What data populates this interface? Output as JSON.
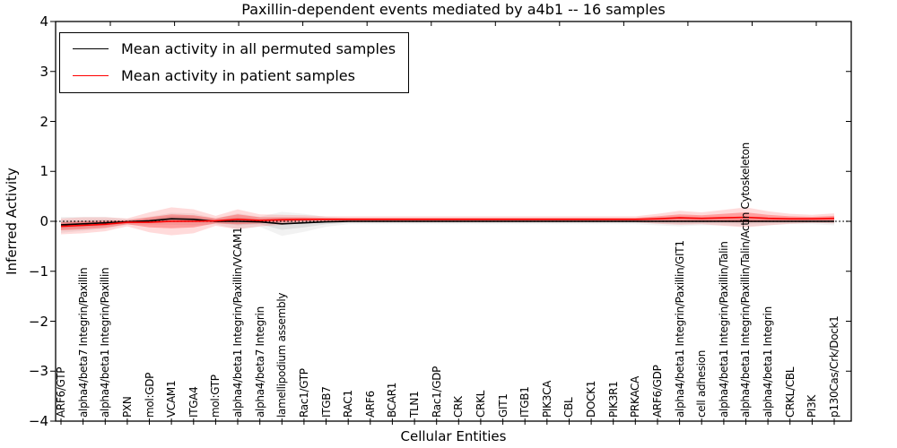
{
  "chart_data": {
    "type": "line",
    "title": "Paxillin-dependent events mediated by a4b1 -- 16 samples",
    "xlabel": "Cellular Entities",
    "ylabel": "Inferred Activity",
    "ylim": [
      -4,
      4
    ],
    "yticks": [
      4,
      3,
      2,
      1,
      0,
      -1,
      -2,
      -3,
      -4
    ],
    "ytick_labels": [
      "4",
      "3",
      "2",
      "1",
      "0",
      "−1",
      "−2",
      "−3",
      "−4"
    ],
    "grid": false,
    "legend_position": "upper left",
    "baseline": {
      "value": 0,
      "style": "dotted",
      "color": "#000000"
    },
    "categories": [
      "ARF6/GTP",
      "alpha4/beta7 Integrin/Paxillin",
      "alpha4/beta1 Integrin/Paxillin",
      "PXN",
      "mol:GDP",
      "VCAM1",
      "ITGA4",
      "mol:GTP",
      "alpha4/beta1 Integrin/Paxillin/VCAM1",
      "alpha4/beta7 Integrin",
      "lamellipodium assembly",
      "Rac1/GTP",
      "ITGB7",
      "RAC1",
      "ARF6",
      "BCAR1",
      "TLN1",
      "Rac1/GDP",
      "CRK",
      "CRKL",
      "GIT1",
      "ITGB1",
      "PIK3CA",
      "CBL",
      "DOCK1",
      "PIK3R1",
      "PRKACA",
      "ARF6/GDP",
      "alpha4/beta1 Integrin/Paxillin/GIT1",
      "cell adhesion",
      "alpha4/beta1 Integrin/Paxillin/Talin",
      "alpha4/beta1 Integrin/Paxillin/Talin/Actin Cytoskeleton",
      "alpha4/beta1 Integrin",
      "CRKL/CBL",
      "PI3K",
      "p130Cas/Crk/Dock1"
    ],
    "series": [
      {
        "name": "Mean activity in all permuted samples",
        "color": "#000000",
        "band_color": "#999999",
        "values": [
          -0.07,
          -0.05,
          -0.03,
          -0.01,
          0.01,
          0.05,
          0.04,
          0.0,
          0.0,
          -0.01,
          -0.05,
          -0.03,
          -0.01,
          0.0,
          0.0,
          0.0,
          0.0,
          0.0,
          0.0,
          0.0,
          0.0,
          0.0,
          0.0,
          0.0,
          0.0,
          0.0,
          0.0,
          0.0,
          0.0,
          0.0,
          0.0,
          0.0,
          0.0,
          0.0,
          0.0,
          0.0
        ],
        "std": [
          0.08,
          0.07,
          0.06,
          0.03,
          0.04,
          0.06,
          0.06,
          0.03,
          0.08,
          0.05,
          0.12,
          0.09,
          0.05,
          0.03,
          0.03,
          0.03,
          0.03,
          0.03,
          0.03,
          0.03,
          0.03,
          0.03,
          0.03,
          0.03,
          0.03,
          0.03,
          0.03,
          0.04,
          0.05,
          0.04,
          0.04,
          0.05,
          0.04,
          0.03,
          0.03,
          0.04
        ]
      },
      {
        "name": "Mean activity in patient samples",
        "color": "#ff0000",
        "band_color": "#ff0000",
        "values": [
          -0.1,
          -0.08,
          -0.06,
          -0.02,
          -0.02,
          0.0,
          0.0,
          0.01,
          0.04,
          0.02,
          0.03,
          0.04,
          0.04,
          0.04,
          0.04,
          0.04,
          0.04,
          0.04,
          0.04,
          0.04,
          0.04,
          0.04,
          0.04,
          0.04,
          0.04,
          0.04,
          0.04,
          0.05,
          0.07,
          0.06,
          0.07,
          0.08,
          0.06,
          0.05,
          0.05,
          0.06
        ],
        "std": [
          0.08,
          0.08,
          0.07,
          0.04,
          0.1,
          0.14,
          0.12,
          0.05,
          0.1,
          0.06,
          0.05,
          0.04,
          0.03,
          0.03,
          0.03,
          0.03,
          0.03,
          0.03,
          0.03,
          0.03,
          0.03,
          0.03,
          0.03,
          0.03,
          0.03,
          0.03,
          0.03,
          0.05,
          0.07,
          0.06,
          0.08,
          0.1,
          0.07,
          0.05,
          0.04,
          0.05
        ]
      }
    ]
  }
}
